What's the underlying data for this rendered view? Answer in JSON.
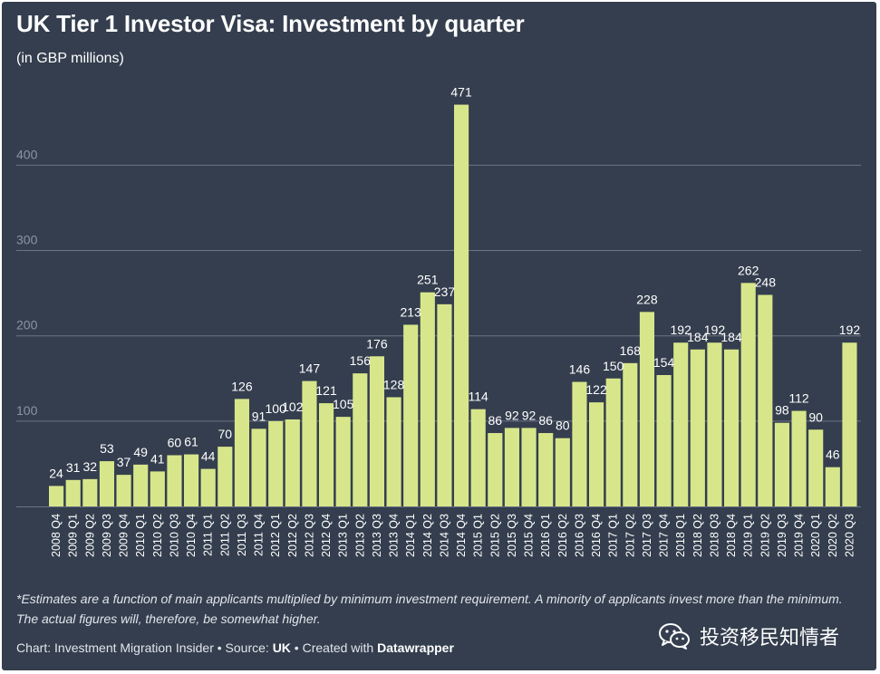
{
  "header": {
    "title": "UK Tier 1 Investor Visa: Investment by quarter",
    "subtitle": "(in GBP millions)"
  },
  "footer": {
    "notes": "*Estimates are a function of main applicants multiplied by minimum investment requirement. A minority of applicants invest more than the minimum. The actual figures will, therefore, be somewhat higher.",
    "credit_prefix": "Chart: Investment Migration Insider • Source: ",
    "credit_source": "UK",
    "credit_mid": " • Created with ",
    "credit_tool": "Datawrapper"
  },
  "watermark": {
    "text": "投资移民知情者",
    "icon": "wechat-icon"
  },
  "colors": {
    "background": "#343e4e",
    "bar": "#d8e68b",
    "gridline": "#6c7583",
    "axis_label": "#8b94a3",
    "text": "#ffffff"
  },
  "chart_data": {
    "type": "bar",
    "title": "UK Tier 1 Investor Visa: Investment by quarter",
    "subtitle": "(in GBP millions)",
    "xlabel": "",
    "ylabel": "",
    "ylim": [
      0,
      470
    ],
    "yticks": [
      100,
      200,
      300,
      400
    ],
    "grid": true,
    "categories": [
      "2008 Q4",
      "2009 Q1",
      "2009 Q2",
      "2009 Q3",
      "2009 Q4",
      "2010 Q1",
      "2010 Q2",
      "2010 Q3",
      "2010 Q4",
      "2011 Q1",
      "2011 Q2",
      "2011 Q3",
      "2011 Q4",
      "2012 Q1",
      "2012 Q2",
      "2012 Q3",
      "2012 Q4",
      "2013 Q1",
      "2013 Q2",
      "2013 Q3",
      "2013 Q4",
      "2014 Q1",
      "2014 Q2",
      "2014 Q3",
      "2014 Q4",
      "2015 Q1",
      "2015 Q2",
      "2015 Q3",
      "2015 Q4",
      "2016 Q1",
      "2016 Q2",
      "2016 Q3",
      "2016 Q4",
      "2017 Q1",
      "2017 Q2",
      "2017 Q3",
      "2017 Q4",
      "2018 Q1",
      "2018 Q2",
      "2018 Q3",
      "2018 Q4",
      "2019 Q1",
      "2019 Q2",
      "2019 Q3",
      "2019 Q4",
      "2020 Q1",
      "2020 Q2",
      "2020 Q3"
    ],
    "values": [
      24,
      31,
      32,
      53,
      37,
      49,
      41,
      60,
      61,
      44,
      70,
      126,
      91,
      100,
      102,
      147,
      121,
      105,
      156,
      176,
      128,
      213,
      251,
      237,
      471,
      114,
      86,
      92,
      92,
      86,
      80,
      146,
      122,
      150,
      168,
      228,
      154,
      192,
      184,
      192,
      184,
      262,
      248,
      98,
      112,
      90,
      46,
      192
    ]
  }
}
